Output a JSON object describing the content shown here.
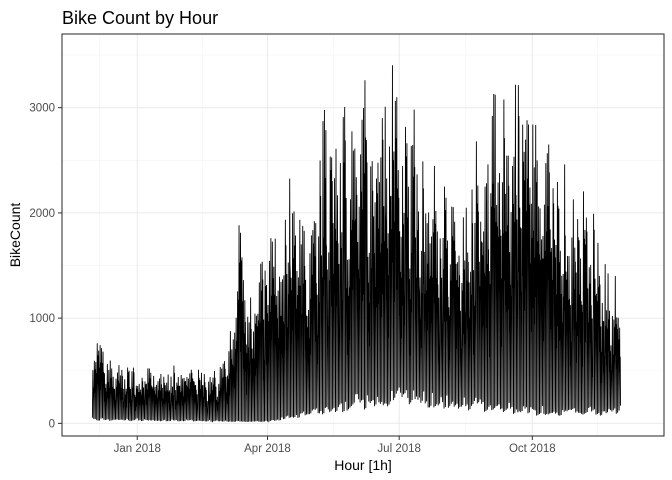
{
  "chart_data": {
    "type": "line",
    "title": "Bike Count by Hour",
    "xlabel": "Hour [1h]",
    "ylabel": "BikeCount",
    "x_ticks": [
      {
        "date": "2018-01-01",
        "label": "Jan 2018"
      },
      {
        "date": "2018-04-01",
        "label": "Apr 2018"
      },
      {
        "date": "2018-07-01",
        "label": "Jul 2018"
      },
      {
        "date": "2018-10-01",
        "label": "Oct 2018"
      }
    ],
    "y_ticks": [
      0,
      1000,
      2000,
      3000
    ],
    "xlim": [
      "2017-11-10",
      "2018-12-31"
    ],
    "ylim": [
      -120,
      3700
    ],
    "grid": true,
    "legend": "none",
    "series": [
      {
        "x_start": "2017-12-01",
        "x_end": "2018-11-30",
        "daily_peaks": [
          {
            "date": "2017-12-01",
            "value": 920
          },
          {
            "date": "2017-12-10",
            "value": 650
          },
          {
            "date": "2017-12-20",
            "value": 560
          },
          {
            "date": "2018-01-05",
            "value": 560
          },
          {
            "date": "2018-01-20",
            "value": 520
          },
          {
            "date": "2018-02-05",
            "value": 600
          },
          {
            "date": "2018-02-20",
            "value": 450
          },
          {
            "date": "2018-03-05",
            "value": 700
          },
          {
            "date": "2018-03-12",
            "value": 2100
          },
          {
            "date": "2018-03-20",
            "value": 1200
          },
          {
            "date": "2018-04-05",
            "value": 2150
          },
          {
            "date": "2018-04-15",
            "value": 2400
          },
          {
            "date": "2018-04-25",
            "value": 2000
          },
          {
            "date": "2018-05-10",
            "value": 3000
          },
          {
            "date": "2018-05-20",
            "value": 3100
          },
          {
            "date": "2018-06-05",
            "value": 3350
          },
          {
            "date": "2018-06-15",
            "value": 3450
          },
          {
            "date": "2018-06-25",
            "value": 3560
          },
          {
            "date": "2018-07-01",
            "value": 3200
          },
          {
            "date": "2018-07-15",
            "value": 3000
          },
          {
            "date": "2018-08-01",
            "value": 2300
          },
          {
            "date": "2018-08-15",
            "value": 2400
          },
          {
            "date": "2018-09-01",
            "value": 3100
          },
          {
            "date": "2018-09-15",
            "value": 3300
          },
          {
            "date": "2018-09-25",
            "value": 3200
          },
          {
            "date": "2018-10-10",
            "value": 2850
          },
          {
            "date": "2018-10-25",
            "value": 2500
          },
          {
            "date": "2018-11-10",
            "value": 2100
          },
          {
            "date": "2018-11-20",
            "value": 1650
          },
          {
            "date": "2018-11-30",
            "value": 1550
          }
        ],
        "daily_baseline": [
          {
            "date": "2017-12-01",
            "value": 40
          },
          {
            "date": "2018-02-01",
            "value": 30
          },
          {
            "date": "2018-04-01",
            "value": 20
          },
          {
            "date": "2018-06-01",
            "value": 200
          },
          {
            "date": "2018-07-01",
            "value": 280
          },
          {
            "date": "2018-08-15",
            "value": 200
          },
          {
            "date": "2018-10-01",
            "value": 120
          },
          {
            "date": "2018-11-30",
            "value": 120
          }
        ]
      }
    ]
  }
}
